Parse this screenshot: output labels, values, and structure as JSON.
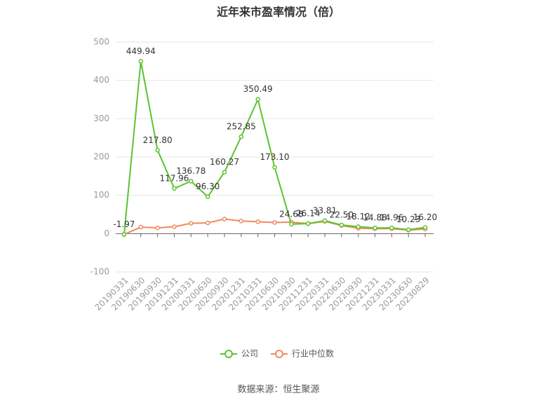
{
  "chart_data": {
    "type": "line",
    "title": "近年来市盈率情况（倍）",
    "categories": [
      "20190331",
      "20190630",
      "20190930",
      "20191231",
      "20200331",
      "20200630",
      "20200930",
      "20201231",
      "20210331",
      "20210630",
      "20210930",
      "20211231",
      "20220331",
      "20220630",
      "20220930",
      "20221231",
      "20230331",
      "20230630",
      "20230829"
    ],
    "series": [
      {
        "name": "公司",
        "color": "#5ac42f",
        "values": [
          -1.97,
          449.94,
          217.8,
          117.96,
          136.78,
          96.3,
          160.27,
          252.85,
          350.49,
          173.1,
          24.68,
          26.14,
          33.81,
          22.5,
          18.12,
          14.88,
          14.96,
          10.23,
          16.2
        ],
        "value_labels": [
          "-1.97",
          "449.94",
          "217.80",
          "117.96",
          "136.78",
          "96.30",
          "160.27",
          "252.85",
          "350.49",
          "173.10",
          "24.68",
          "26.14",
          "33.81",
          "22.50",
          "18.12",
          "14.88",
          "14.96",
          "10.23",
          "16.20"
        ]
      },
      {
        "name": "行业中位数",
        "color": "#f08a5d",
        "values": [
          -2,
          17,
          15,
          18,
          27,
          28,
          38,
          33,
          31,
          29,
          30,
          26,
          32,
          21,
          14,
          13,
          13,
          9,
          12
        ]
      }
    ],
    "ylim": [
      -100,
      500
    ],
    "yticks": [
      -100,
      0,
      100,
      200,
      300,
      400,
      500
    ],
    "grid": true,
    "source": "数据来源：恒生聚源"
  }
}
